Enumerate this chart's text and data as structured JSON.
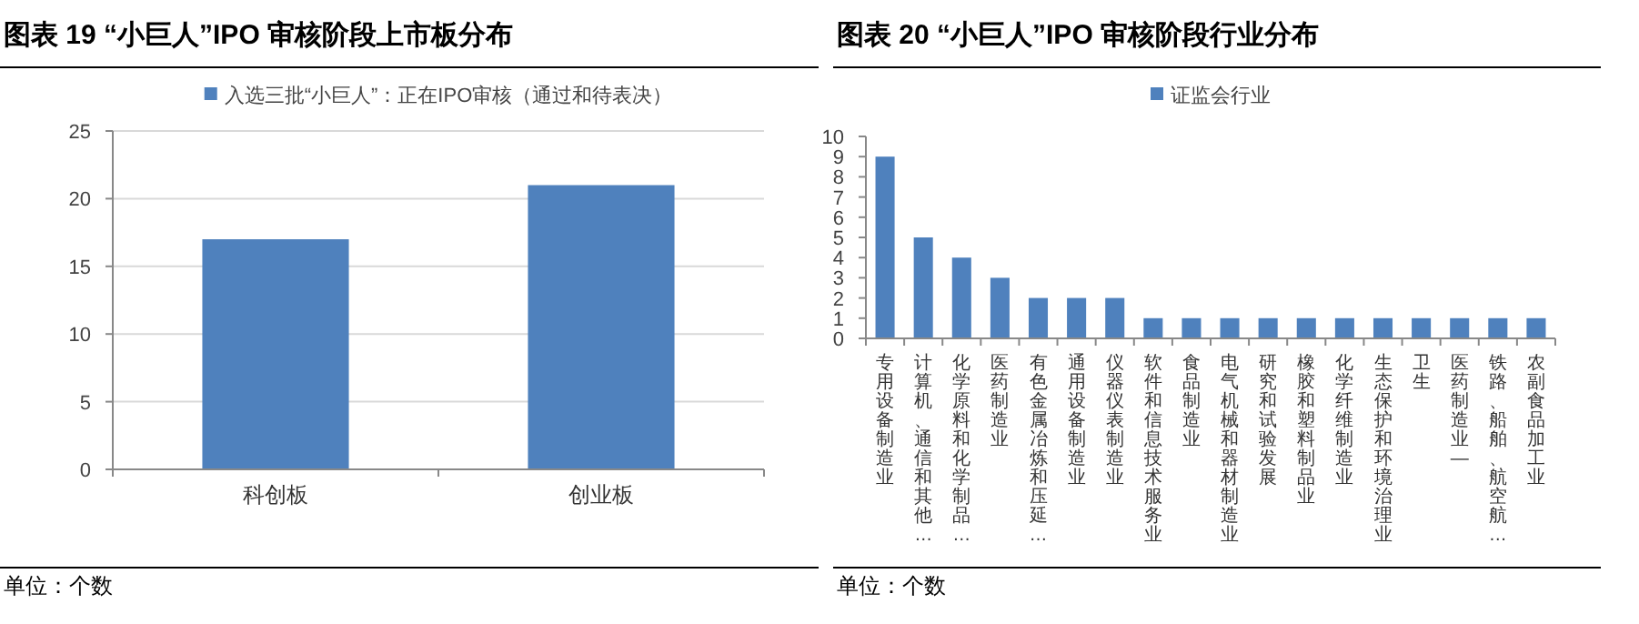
{
  "chart_data": [
    {
      "type": "bar",
      "title": "图表 19 “小巨人”IPO 审核阶段上市板分布",
      "categories": [
        "科创板",
        "创业板"
      ],
      "series": [
        {
          "name": "入选三批“小巨人”：正在IPO审核（通过和待表决）",
          "color": "#4f81bd",
          "values": [
            17,
            21
          ]
        }
      ],
      "ylim": [
        0,
        25
      ],
      "yticks": [
        0,
        5,
        10,
        15,
        20,
        25
      ],
      "grid": "y",
      "legend": "top",
      "annotations": [
        "单位：个数"
      ]
    },
    {
      "type": "bar",
      "title": "图表 20 “小巨人”IPO 审核阶段行业分布",
      "categories": [
        "专用设备制造业",
        "计算机、通信和其他…",
        "化学原料和化学制品…",
        "医药制造业",
        "有色金属冶炼和压延…",
        "通用设备制造业",
        "仪器仪表制造业",
        "软件和信息技术服务业",
        "食品制造业",
        "电气机械和器材制造业",
        "研究和试验发展",
        "橡胶和塑料制品业",
        "化学纤维制造业",
        "生态保护和环境治理业",
        "卫生",
        "医药制造业—",
        "铁路、船舶、航空航…",
        "农副食品加工业"
      ],
      "series": [
        {
          "name": "证监会行业",
          "color": "#4f81bd",
          "values": [
            9,
            5,
            4,
            3,
            2,
            2,
            2,
            1,
            1,
            1,
            1,
            1,
            1,
            1,
            1,
            1,
            1,
            1
          ]
        }
      ],
      "ylim": [
        0,
        10
      ],
      "yticks": [
        0,
        1,
        2,
        3,
        4,
        5,
        6,
        7,
        8,
        9,
        10
      ],
      "grid": false,
      "legend": "top",
      "annotations": [
        "单位：个数"
      ]
    }
  ]
}
